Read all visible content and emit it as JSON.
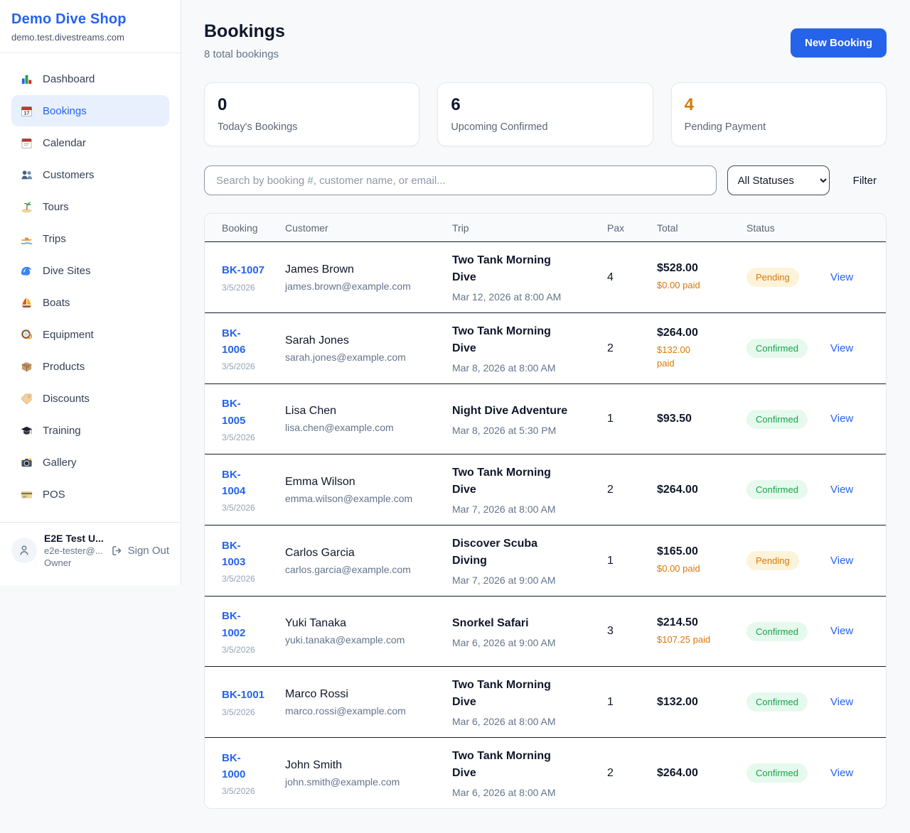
{
  "colors": {
    "accent": "#2563eb",
    "pending": "#d97706",
    "confirmed": "#16a34a"
  },
  "sidebar": {
    "brand": "Demo Dive Shop",
    "domain": "demo.test.divestreams.com",
    "items": [
      {
        "label": "Dashboard",
        "icon": "bar-chart-icon",
        "active": false
      },
      {
        "label": "Bookings",
        "icon": "calendar-icon",
        "active": true
      },
      {
        "label": "Calendar",
        "icon": "tear-calendar-icon",
        "active": false
      },
      {
        "label": "Customers",
        "icon": "users-icon",
        "active": false
      },
      {
        "label": "Tours",
        "icon": "island-icon",
        "active": false
      },
      {
        "label": "Trips",
        "icon": "speedboat-icon",
        "active": false
      },
      {
        "label": "Dive Sites",
        "icon": "wave-icon",
        "active": false
      },
      {
        "label": "Boats",
        "icon": "sailboat-icon",
        "active": false
      },
      {
        "label": "Equipment",
        "icon": "dive-mask-icon",
        "active": false
      },
      {
        "label": "Products",
        "icon": "package-icon",
        "active": false
      },
      {
        "label": "Discounts",
        "icon": "tag-icon",
        "active": false
      },
      {
        "label": "Training",
        "icon": "grad-cap-icon",
        "active": false
      },
      {
        "label": "Gallery",
        "icon": "camera-icon",
        "active": false
      },
      {
        "label": "POS",
        "icon": "credit-card-icon",
        "active": false
      }
    ],
    "user": {
      "name": "E2E Test U...",
      "email": "e2e-tester@...",
      "role": "Owner",
      "signout_label": "Sign Out"
    }
  },
  "header": {
    "title": "Bookings",
    "subtitle": "8 total bookings",
    "new_booking_label": "New Booking"
  },
  "stats": [
    {
      "value": "0",
      "label": "Today's Bookings",
      "color": "#0f172a"
    },
    {
      "value": "6",
      "label": "Upcoming Confirmed",
      "color": "#0f172a"
    },
    {
      "value": "4",
      "label": "Pending Payment",
      "color": "#d97706"
    }
  ],
  "controls": {
    "search_placeholder": "Search by booking #, customer name, or email...",
    "status_filter_value": "All Statuses",
    "filter_label": "Filter"
  },
  "table": {
    "columns": [
      "Booking",
      "Customer",
      "Trip",
      "Pax",
      "Total",
      "Status"
    ],
    "view_label": "View",
    "rows": [
      {
        "id": "BK-1007",
        "date": "3/5/2026",
        "customer": "James Brown",
        "email": "james.brown@example.com",
        "trip": "Two Tank Morning\nDive",
        "datetime": "Mar 12, 2026 at 8:00 AM",
        "pax": "4",
        "total": "$528.00",
        "paid": "$0.00 paid",
        "status": "Pending"
      },
      {
        "id": "BK-\n1006",
        "date": "3/5/2026",
        "customer": "Sarah Jones",
        "email": "sarah.jones@example.com",
        "trip": "Two Tank Morning\nDive",
        "datetime": "Mar 8, 2026 at 8:00 AM",
        "pax": "2",
        "total": "$264.00",
        "paid": "$132.00\npaid",
        "status": "Confirmed"
      },
      {
        "id": "BK-\n1005",
        "date": "3/5/2026",
        "customer": "Lisa Chen",
        "email": "lisa.chen@example.com",
        "trip": "Night Dive Adventure",
        "datetime": "Mar 8, 2026 at 5:30 PM",
        "pax": "1",
        "total": "$93.50",
        "paid": null,
        "status": "Confirmed"
      },
      {
        "id": "BK-\n1004",
        "date": "3/5/2026",
        "customer": "Emma Wilson",
        "email": "emma.wilson@example.com",
        "trip": "Two Tank Morning\nDive",
        "datetime": "Mar 7, 2026 at 8:00 AM",
        "pax": "2",
        "total": "$264.00",
        "paid": null,
        "status": "Confirmed"
      },
      {
        "id": "BK-\n1003",
        "date": "3/5/2026",
        "customer": "Carlos Garcia",
        "email": "carlos.garcia@example.com",
        "trip": "Discover Scuba\nDiving",
        "datetime": "Mar 7, 2026 at 9:00 AM",
        "pax": "1",
        "total": "$165.00",
        "paid": "$0.00 paid",
        "status": "Pending"
      },
      {
        "id": "BK-\n1002",
        "date": "3/5/2026",
        "customer": "Yuki Tanaka",
        "email": "yuki.tanaka@example.com",
        "trip": "Snorkel Safari",
        "datetime": "Mar 6, 2026 at 9:00 AM",
        "pax": "3",
        "total": "$214.50",
        "paid": "$107.25 paid",
        "status": "Confirmed"
      },
      {
        "id": "BK-1001",
        "date": "3/5/2026",
        "customer": "Marco Rossi",
        "email": "marco.rossi@example.com",
        "trip": "Two Tank Morning\nDive",
        "datetime": "Mar 6, 2026 at 8:00 AM",
        "pax": "1",
        "total": "$132.00",
        "paid": null,
        "status": "Confirmed"
      },
      {
        "id": "BK-\n1000",
        "date": "3/5/2026",
        "customer": "John Smith",
        "email": "john.smith@example.com",
        "trip": "Two Tank Morning\nDive",
        "datetime": "Mar 6, 2026 at 8:00 AM",
        "pax": "2",
        "total": "$264.00",
        "paid": null,
        "status": "Confirmed"
      }
    ]
  }
}
